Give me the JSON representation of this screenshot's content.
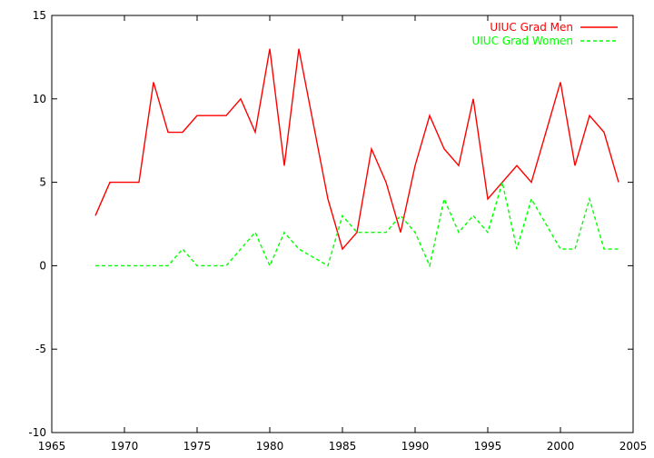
{
  "chart_data": {
    "type": "line",
    "title": "",
    "xlabel": "",
    "ylabel": "",
    "xlim": [
      1965,
      2005
    ],
    "ylim": [
      -10,
      15
    ],
    "grid": false,
    "legend_position": "top-right",
    "x_ticks": [
      "1965",
      "1970",
      "1975",
      "1980",
      "1985",
      "1990",
      "1995",
      "2000",
      "2005"
    ],
    "y_ticks": [
      "-10",
      "-5",
      "0",
      "5",
      "10",
      "15"
    ],
    "x": [
      1968,
      1969,
      1970,
      1971,
      1972,
      1973,
      1974,
      1975,
      1976,
      1977,
      1978,
      1979,
      1980,
      1981,
      1982,
      1983,
      1984,
      1985,
      1986,
      1987,
      1988,
      1989,
      1990,
      1991,
      1992,
      1993,
      1994,
      1995,
      1996,
      1997,
      1998,
      1999,
      2000,
      2001,
      2002,
      2003,
      2004
    ],
    "series": [
      {
        "name": "UIUC Grad Men",
        "color": "#ff0000",
        "dash": "solid",
        "values": [
          3,
          5,
          5,
          5,
          11,
          8,
          8,
          9,
          9,
          9,
          10,
          8,
          13,
          6,
          13,
          8.5,
          4,
          1,
          2,
          7,
          5,
          2,
          6,
          9,
          7,
          6,
          10,
          4,
          5,
          6,
          5,
          8,
          11,
          6,
          9,
          8,
          5
        ]
      },
      {
        "name": "UIUC Grad Women",
        "color": "#00ff00",
        "dash": "dashed",
        "values": [
          0,
          0,
          0,
          0,
          0,
          0,
          1,
          0,
          0,
          0,
          1,
          2,
          0,
          2,
          1,
          0.5,
          0,
          3,
          2,
          2,
          2,
          3,
          2,
          0,
          4,
          2,
          3,
          2,
          5,
          1,
          4,
          2.5,
          1,
          1,
          4,
          1,
          1
        ]
      }
    ]
  }
}
